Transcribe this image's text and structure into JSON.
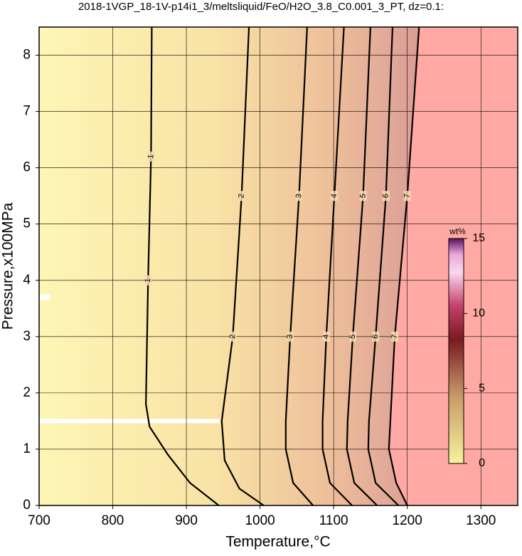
{
  "chart_data": {
    "type": "contour",
    "title": "2018-1VGP_18-1V-p14i1_3/meltsliquid/FeO/H2O_3.8_C0.001_3_PT, dz=0.1:",
    "xlabel": "Temperature,°C",
    "ylabel": "Pressure,x100MPa",
    "xlim": [
      700,
      1350
    ],
    "ylim": [
      0,
      8.5
    ],
    "xticks": [
      700,
      800,
      900,
      1000,
      1100,
      1200,
      1300
    ],
    "yticks": [
      0,
      1,
      2,
      3,
      4,
      5,
      6,
      7,
      8
    ],
    "grid": true,
    "contours": [
      {
        "level": 1,
        "x": [
          944,
          905,
          875,
          850,
          845,
          848,
          852,
          853
        ],
        "y": [
          0,
          0.4,
          0.9,
          1.4,
          1.8,
          4,
          6.2,
          8.5
        ]
      },
      {
        "level": 2,
        "x": [
          1005,
          972,
          952,
          948,
          963,
          975,
          985
        ],
        "y": [
          0,
          0.3,
          0.8,
          1.5,
          3,
          5.5,
          8.5
        ]
      },
      {
        "level": 3,
        "x": [
          1072,
          1045,
          1035,
          1035,
          1041,
          1053,
          1064
        ],
        "y": [
          0,
          0.4,
          1,
          1.5,
          3,
          5.5,
          8.5
        ]
      },
      {
        "level": 4,
        "x": [
          1125,
          1095,
          1085,
          1085,
          1090,
          1101,
          1114
        ],
        "y": [
          0,
          0.4,
          1,
          1.5,
          3,
          5.5,
          8.5
        ]
      },
      {
        "level": 5,
        "x": [
          1159,
          1128,
          1118,
          1119,
          1126,
          1140,
          1150
        ],
        "y": [
          0,
          0.4,
          1,
          1.5,
          3,
          5.5,
          8.5
        ]
      },
      {
        "level": 6,
        "x": [
          1188,
          1157,
          1147,
          1148,
          1157,
          1171,
          1180
        ],
        "y": [
          0,
          0.4,
          1,
          1.5,
          3,
          5.5,
          8.5
        ]
      },
      {
        "level": 7,
        "x": [
          1200,
          1185,
          1175,
          1177,
          1183,
          1200,
          1216
        ],
        "y": [
          0,
          0.4,
          1,
          1.5,
          3,
          5.5,
          8.5
        ]
      }
    ],
    "colorbar": {
      "label": "wt%",
      "lim": [
        0,
        15
      ],
      "ticks": [
        0,
        5,
        10,
        15
      ]
    }
  }
}
